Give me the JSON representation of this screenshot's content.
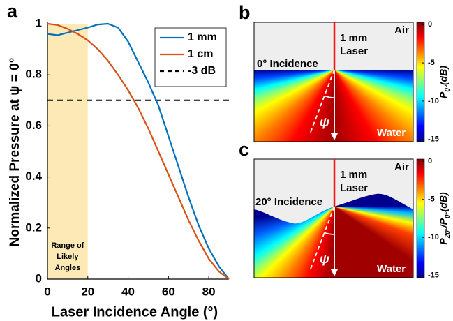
{
  "chart_data": [
    {
      "type": "line",
      "panel": "a",
      "xlabel": "Laser Incidence Angle (°)",
      "ylabel": "Normalized Pressure at ψ = 0°",
      "x": [
        0,
        5,
        10,
        15,
        20,
        25,
        30,
        35,
        40,
        45,
        50,
        55,
        60,
        65,
        70,
        75,
        80,
        85,
        90
      ],
      "series": [
        {
          "name": "1 mm",
          "color": "#0072bd",
          "values": [
            0.96,
            0.955,
            0.965,
            0.975,
            0.985,
            0.997,
            1.0,
            0.985,
            0.93,
            0.85,
            0.77,
            0.68,
            0.56,
            0.44,
            0.32,
            0.21,
            0.12,
            0.05,
            0
          ]
        },
        {
          "name": "1 cm",
          "color": "#d95319",
          "values": [
            1.0,
            0.995,
            0.98,
            0.96,
            0.935,
            0.9,
            0.855,
            0.8,
            0.74,
            0.67,
            0.59,
            0.5,
            0.41,
            0.32,
            0.23,
            0.15,
            0.08,
            0.03,
            0
          ]
        }
      ],
      "hlines": [
        {
          "name": "-3 dB",
          "value": 0.7,
          "color": "#000000"
        }
      ],
      "shade": {
        "range": [
          0,
          20
        ],
        "color": "#fde9b5",
        "label": [
          "Range of",
          "Likely",
          "Angles"
        ]
      },
      "xlim": [
        0,
        90
      ],
      "xticks": [
        0,
        20,
        40,
        60,
        80
      ],
      "ylim": [
        0,
        1
      ],
      "yticks": [
        0,
        0.2,
        0.4,
        0.6,
        0.8,
        1
      ],
      "legend": "upper right"
    },
    {
      "type": "heatmap",
      "panel": "b",
      "labels": {
        "laser": [
          "1 mm",
          "Laser"
        ],
        "air": "Air",
        "incidence": "0° Incidence",
        "angle": "ψ",
        "water": "Water"
      },
      "colorbar": {
        "lim": [
          -15.3,
          0.3
        ],
        "ticks": [
          0,
          -5,
          -10,
          -15
        ],
        "label": [
          {
            "text": "P"
          },
          {
            "text": "0°",
            "sub": true
          },
          {
            "text": "(dB)"
          }
        ]
      }
    },
    {
      "type": "heatmap",
      "panel": "c",
      "labels": {
        "laser": [
          "1 mm",
          "Laser"
        ],
        "air": "Air",
        "incidence": "20° Incidence",
        "angle": "ψ",
        "water": "Water"
      },
      "colorbar": {
        "lim": [
          -15.3,
          0.3
        ],
        "ticks": [
          0,
          -5,
          -10,
          -15
        ],
        "label": [
          {
            "text": "P"
          },
          {
            "text": "20°",
            "sub": true
          },
          {
            "text": "/P"
          },
          {
            "text": "0°",
            "sub": true
          },
          {
            "text": "(dB)"
          }
        ]
      }
    }
  ]
}
